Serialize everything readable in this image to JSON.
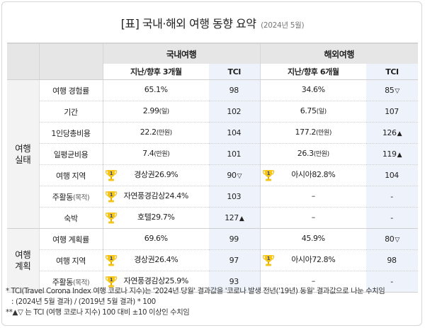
{
  "title": {
    "main": "[표] 국내·해외 여행 동향 요약",
    "sub": "(2024년 5월)"
  },
  "header": {
    "domestic": "국내여행",
    "overseas": "해외여행",
    "domestic_value": "지난/향후 3개월",
    "overseas_value": "지난/향후 6개월",
    "tci": "TCI"
  },
  "groups": [
    {
      "label_line1": "여행",
      "label_line2": "실태",
      "rows": [
        {
          "label": "여행 경험률",
          "label_paren": "",
          "dom": "65.1%",
          "dom_unit": "",
          "dom_trophy": false,
          "dom_tci": "98",
          "dom_mark": "",
          "ovs": "34.6%",
          "ovs_unit": "",
          "ovs_trophy": false,
          "ovs_tci": "85",
          "ovs_mark": "▽"
        },
        {
          "label": "기간",
          "label_paren": "",
          "dom": "2.99",
          "dom_unit": "(일)",
          "dom_trophy": false,
          "dom_tci": "102",
          "dom_mark": "",
          "ovs": "6.75",
          "ovs_unit": "(일)",
          "ovs_trophy": false,
          "ovs_tci": "107",
          "ovs_mark": ""
        },
        {
          "label": "1인당총비용",
          "label_paren": "",
          "dom": "22.2",
          "dom_unit": "(만원)",
          "dom_trophy": false,
          "dom_tci": "104",
          "dom_mark": "",
          "ovs": "177.2",
          "ovs_unit": "(만원)",
          "ovs_trophy": false,
          "ovs_tci": "126",
          "ovs_mark": "▲"
        },
        {
          "label": "일평균비용",
          "label_paren": "",
          "dom": "7.4",
          "dom_unit": "(만원)",
          "dom_trophy": false,
          "dom_tci": "101",
          "dom_mark": "",
          "ovs": "26.3",
          "ovs_unit": "(만원)",
          "ovs_trophy": false,
          "ovs_tci": "119",
          "ovs_mark": "▲"
        },
        {
          "label": "여행 지역",
          "label_paren": "",
          "dom": "경상권26.9%",
          "dom_unit": "",
          "dom_trophy": true,
          "dom_tci": "90",
          "dom_mark": "▽",
          "ovs": "아시아82.8%",
          "ovs_unit": "",
          "ovs_trophy": true,
          "ovs_tci": "104",
          "ovs_mark": ""
        },
        {
          "label": "주활동",
          "label_paren": "(목적)",
          "dom": "자연풍경감상24.4%",
          "dom_unit": "",
          "dom_trophy": true,
          "dom_tci": "103",
          "dom_mark": "",
          "ovs": "–",
          "ovs_unit": "",
          "ovs_trophy": false,
          "ovs_tci": "-",
          "ovs_mark": ""
        },
        {
          "label": "숙박",
          "label_paren": "",
          "dom": "호텔29.7%",
          "dom_unit": "",
          "dom_trophy": true,
          "dom_tci": "127",
          "dom_mark": "▲",
          "ovs": "–",
          "ovs_unit": "",
          "ovs_trophy": false,
          "ovs_tci": "-",
          "ovs_mark": ""
        }
      ]
    },
    {
      "label_line1": "여행",
      "label_line2": "계획",
      "rows": [
        {
          "label": "여행 계획률",
          "label_paren": "",
          "dom": "69.6%",
          "dom_unit": "",
          "dom_trophy": false,
          "dom_tci": "99",
          "dom_mark": "",
          "ovs": "45.9%",
          "ovs_unit": "",
          "ovs_trophy": false,
          "ovs_tci": "80",
          "ovs_mark": "▽"
        },
        {
          "label": "여행 지역",
          "label_paren": "",
          "dom": "경상권26.4%",
          "dom_unit": "",
          "dom_trophy": true,
          "dom_tci": "97",
          "dom_mark": "",
          "ovs": "아시아72.8%",
          "ovs_unit": "",
          "ovs_trophy": true,
          "ovs_tci": "98",
          "ovs_mark": ""
        },
        {
          "label": "주활동",
          "label_paren": "(목적)",
          "dom": "자연풍경감상25.9%",
          "dom_unit": "",
          "dom_trophy": true,
          "dom_tci": "93",
          "dom_mark": "",
          "ovs": "–",
          "ovs_unit": "",
          "ovs_trophy": false,
          "ovs_tci": "-",
          "ovs_mark": ""
        }
      ]
    }
  ],
  "trophy": {
    "rank": "1",
    "color": "#f5c518",
    "rank_color": "#3a4a8a"
  },
  "colors": {
    "header_bg": "#e6e6e6",
    "tci_bg": "#eef3fb",
    "group_bg": "#f3f3f3"
  },
  "footnote": {
    "line1": "* TCI(Travel Corona Index 여행 코로나 지수)는 '2024년 당월' 결과값을 '코로나 발생 전년('19년) 동월' 결과값으로 나눈 수치임",
    "line2": ": (2024년 5월 결과) / (2019년 5월 결과) * 100",
    "line3": "**▲▽ 는 TCI (여행 코로나 지수) 100 대비  ±10 이상인 수치임"
  }
}
